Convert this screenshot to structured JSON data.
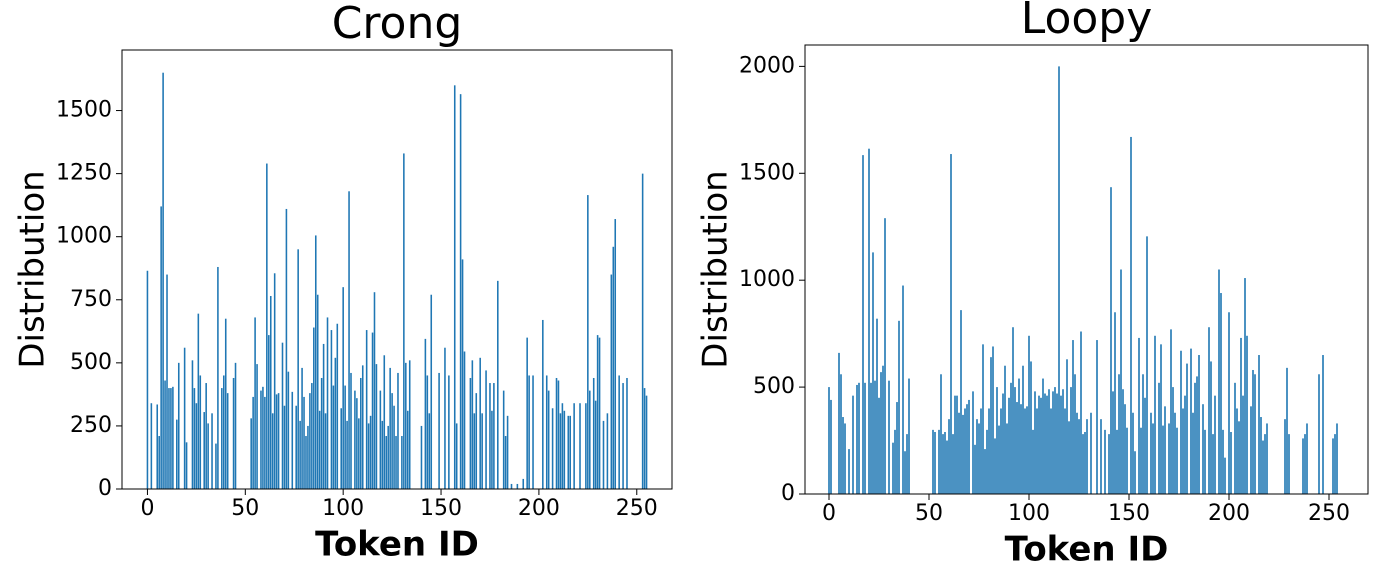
{
  "chart_data": [
    {
      "type": "bar",
      "title": "Crong",
      "x_label": "Token ID",
      "y_label": "Distribution",
      "color": "#1f77b4",
      "xlim": [
        -13,
        268
      ],
      "ylim": [
        0,
        1740
      ],
      "xticks": [
        0,
        50,
        100,
        150,
        200,
        250
      ],
      "yticks": [
        0,
        250,
        500,
        750,
        1000,
        1250,
        1500
      ],
      "values": [
        865,
        0,
        340,
        0,
        0,
        335,
        210,
        1120,
        1650,
        430,
        850,
        400,
        400,
        405,
        0,
        275,
        500,
        0,
        0,
        560,
        185,
        0,
        0,
        510,
        400,
        340,
        695,
        450,
        0,
        305,
        420,
        260,
        0,
        300,
        0,
        180,
        880,
        0,
        400,
        450,
        675,
        380,
        0,
        0,
        440,
        500,
        0,
        0,
        0,
        0,
        0,
        0,
        0,
        280,
        365,
        680,
        495,
        0,
        390,
        405,
        365,
        1290,
        610,
        765,
        300,
        855,
        375,
        380,
        0,
        580,
        330,
        1110,
        465,
        0,
        385,
        0,
        330,
        950,
        270,
        480,
        365,
        210,
        250,
        380,
        420,
        640,
        1005,
        770,
        310,
        440,
        575,
        300,
        680,
        0,
        630,
        410,
        520,
        655,
        0,
        320,
        800,
        410,
        270,
        1180,
        460,
        0,
        390,
        360,
        280,
        440,
        490,
        0,
        630,
        260,
        290,
        620,
        780,
        495,
        0,
        390,
        270,
        530,
        210,
        250,
        480,
        380,
        330,
        210,
        460,
        0,
        210,
        1330,
        500,
        310,
        510,
        0,
        0,
        0,
        0,
        0,
        250,
        0,
        595,
        450,
        300,
        770,
        0,
        0,
        0,
        460,
        0,
        0,
        560,
        0,
        450,
        0,
        0,
        1600,
        260,
        0,
        1565,
        910,
        545,
        0,
        0,
        440,
        510,
        300,
        380,
        0,
        520,
        300,
        0,
        470,
        0,
        420,
        310,
        420,
        0,
        825,
        0,
        0,
        390,
        210,
        290,
        0,
        20,
        0,
        0,
        20,
        0,
        0,
        40,
        0,
        600,
        450,
        0,
        450,
        0,
        0,
        0,
        0,
        670,
        0,
        450,
        390,
        0,
        320,
        0,
        440,
        430,
        300,
        340,
        310,
        0,
        290,
        290,
        0,
        340,
        0,
        0,
        340,
        0,
        0,
        340,
        1165,
        390,
        0,
        440,
        350,
        610,
        600,
        0,
        270,
        0,
        300,
        0,
        850,
        960,
        1070,
        0,
        450,
        0,
        420,
        0,
        440,
        0,
        0,
        0,
        0,
        0,
        0,
        0,
        1250,
        400,
        370
      ]
    },
    {
      "type": "bar",
      "title": "Loopy",
      "x_label": "Token ID",
      "y_label": "Distribution",
      "color": "#1f77b4",
      "xlim": [
        -12,
        269.5
      ],
      "ylim": [
        0,
        2100
      ],
      "xticks": [
        0,
        50,
        100,
        150,
        200,
        250
      ],
      "yticks": [
        0,
        500,
        1000,
        1500,
        2000
      ],
      "values": [
        500,
        440,
        0,
        0,
        0,
        660,
        560,
        360,
        330,
        0,
        210,
        0,
        460,
        0,
        510,
        520,
        0,
        1585,
        520,
        0,
        1615,
        520,
        1130,
        530,
        820,
        450,
        570,
        600,
        1290,
        0,
        530,
        0,
        240,
        300,
        430,
        810,
        0,
        975,
        200,
        280,
        540,
        0,
        0,
        0,
        0,
        0,
        0,
        0,
        0,
        0,
        0,
        0,
        300,
        290,
        0,
        300,
        560,
        280,
        290,
        250,
        350,
        1590,
        280,
        460,
        460,
        380,
        860,
        370,
        400,
        420,
        440,
        0,
        480,
        230,
        350,
        330,
        400,
        700,
        210,
        300,
        400,
        640,
        690,
        260,
        500,
        320,
        400,
        470,
        600,
        330,
        450,
        520,
        780,
        500,
        430,
        540,
        420,
        600,
        400,
        410,
        740,
        620,
        300,
        480,
        400,
        460,
        450,
        540,
        470,
        460,
        490,
        400,
        480,
        500,
        470,
        2000,
        460,
        490,
        400,
        630,
        340,
        500,
        720,
        560,
        380,
        350,
        760,
        280,
        290,
        350,
        0,
        380,
        0,
        0,
        720,
        0,
        350,
        0,
        300,
        0,
        280,
        1435,
        480,
        850,
        300,
        560,
        1050,
        490,
        420,
        310,
        0,
        1670,
        380,
        200,
        0,
        730,
        310,
        560,
        450,
        1205,
        0,
        380,
        330,
        740,
        0,
        520,
        700,
        320,
        410,
        0,
        330,
        770,
        500,
        380,
        310,
        0,
        670,
        400,
        460,
        610,
        0,
        680,
        380,
        520,
        550,
        650,
        0,
        420,
        300,
        0,
        780,
        620,
        280,
        460,
        0,
        1050,
        940,
        300,
        170,
        0,
        850,
        290,
        0,
        520,
        400,
        340,
        730,
        460,
        1010,
        740,
        0,
        410,
        580,
        560,
        0,
        650,
        360,
        250,
        280,
        330,
        0,
        0,
        0,
        0,
        0,
        0,
        0,
        0,
        350,
        590,
        280,
        0,
        0,
        0,
        0,
        0,
        0,
        260,
        280,
        330,
        0,
        0,
        0,
        0,
        0,
        560,
        0,
        650,
        0,
        0,
        0,
        0,
        260,
        280,
        330,
        0
      ]
    }
  ]
}
